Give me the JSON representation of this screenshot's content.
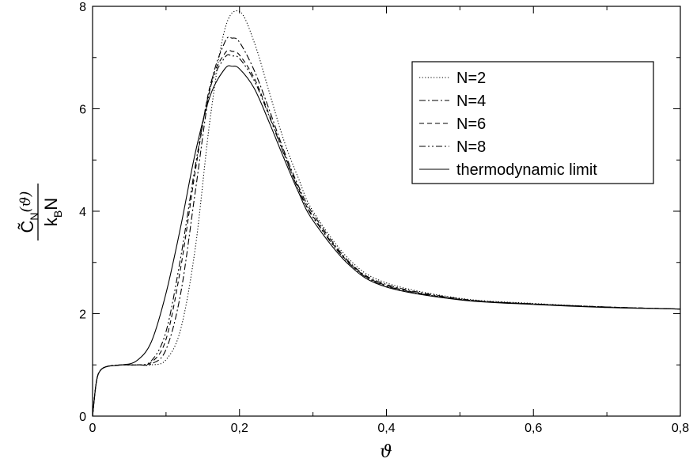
{
  "chart_data": {
    "type": "line",
    "xlabel": "ϑ",
    "ylabel": {
      "numerator": "C̃",
      "num_sub": "N",
      "num_arg": "(ϑ)",
      "den_k": "k",
      "den_sub": "B",
      "den_n": "N"
    },
    "xlim": [
      0,
      0.8
    ],
    "ylim": [
      0,
      8
    ],
    "x_ticks": [
      0,
      0.2,
      0.4,
      0.6,
      0.8
    ],
    "x_tick_labels": [
      "0",
      "0,2",
      "0,4",
      "0,6",
      "0,8"
    ],
    "y_ticks": [
      0,
      2,
      4,
      6,
      8
    ],
    "y_tick_labels": [
      "0",
      "2",
      "4",
      "6",
      "8"
    ],
    "grid": false,
    "legend_position": "top-right",
    "series": [
      {
        "name": "N=2",
        "style": "dotted",
        "x": [
          0,
          0.005,
          0.01,
          0.02,
          0.04,
          0.06,
          0.08,
          0.1,
          0.12,
          0.14,
          0.16,
          0.18,
          0.2,
          0.22,
          0.24,
          0.26,
          0.28,
          0.3,
          0.35,
          0.4,
          0.5,
          0.6,
          0.7,
          0.8
        ],
        "values": [
          0,
          0.65,
          0.88,
          0.97,
          1.0,
          1.0,
          1.0,
          1.1,
          1.7,
          3.3,
          5.8,
          7.55,
          7.9,
          7.3,
          6.35,
          5.4,
          4.65,
          4.0,
          3.05,
          2.6,
          2.3,
          2.2,
          2.13,
          2.09
        ]
      },
      {
        "name": "N=4",
        "style": "dashdot",
        "x": [
          0,
          0.005,
          0.01,
          0.02,
          0.04,
          0.06,
          0.08,
          0.1,
          0.12,
          0.14,
          0.16,
          0.18,
          0.19,
          0.2,
          0.22,
          0.24,
          0.26,
          0.28,
          0.3,
          0.35,
          0.4,
          0.5,
          0.6,
          0.7,
          0.8
        ],
        "values": [
          0,
          0.65,
          0.88,
          0.97,
          1.0,
          1.0,
          1.02,
          1.3,
          2.4,
          4.4,
          6.4,
          7.3,
          7.38,
          7.3,
          6.75,
          6.0,
          5.2,
          4.5,
          3.95,
          3.0,
          2.57,
          2.29,
          2.19,
          2.13,
          2.09
        ]
      },
      {
        "name": "N=6",
        "style": "dashed",
        "x": [
          0,
          0.005,
          0.01,
          0.02,
          0.04,
          0.06,
          0.08,
          0.1,
          0.12,
          0.14,
          0.16,
          0.18,
          0.19,
          0.2,
          0.22,
          0.24,
          0.26,
          0.28,
          0.3,
          0.35,
          0.4,
          0.5,
          0.6,
          0.7,
          0.8
        ],
        "values": [
          0,
          0.65,
          0.88,
          0.97,
          1.0,
          1.0,
          1.05,
          1.5,
          2.9,
          4.8,
          6.45,
          7.08,
          7.12,
          7.05,
          6.6,
          5.9,
          5.15,
          4.45,
          3.9,
          2.98,
          2.55,
          2.28,
          2.19,
          2.13,
          2.09
        ]
      },
      {
        "name": "N=8",
        "style": "dashdotdot",
        "x": [
          0,
          0.005,
          0.01,
          0.02,
          0.04,
          0.06,
          0.08,
          0.1,
          0.12,
          0.14,
          0.16,
          0.18,
          0.19,
          0.2,
          0.22,
          0.24,
          0.26,
          0.28,
          0.3,
          0.35,
          0.4,
          0.5,
          0.6,
          0.7,
          0.8
        ],
        "values": [
          0,
          0.65,
          0.88,
          0.97,
          1.0,
          1.0,
          1.08,
          1.65,
          3.1,
          4.9,
          6.4,
          7.0,
          7.03,
          6.98,
          6.55,
          5.87,
          5.13,
          4.43,
          3.88,
          2.97,
          2.54,
          2.28,
          2.19,
          2.13,
          2.09
        ]
      },
      {
        "name": "thermodynamic limit",
        "style": "solid",
        "x": [
          0,
          0.005,
          0.01,
          0.02,
          0.04,
          0.06,
          0.08,
          0.1,
          0.12,
          0.14,
          0.16,
          0.18,
          0.19,
          0.2,
          0.22,
          0.24,
          0.26,
          0.28,
          0.3,
          0.35,
          0.4,
          0.5,
          0.6,
          0.7,
          0.8
        ],
        "values": [
          0,
          0.65,
          0.88,
          0.97,
          1.0,
          1.08,
          1.45,
          2.4,
          3.7,
          5.15,
          6.25,
          6.78,
          6.83,
          6.78,
          6.4,
          5.75,
          5.05,
          4.38,
          3.82,
          2.94,
          2.52,
          2.27,
          2.18,
          2.12,
          2.09
        ]
      }
    ]
  }
}
